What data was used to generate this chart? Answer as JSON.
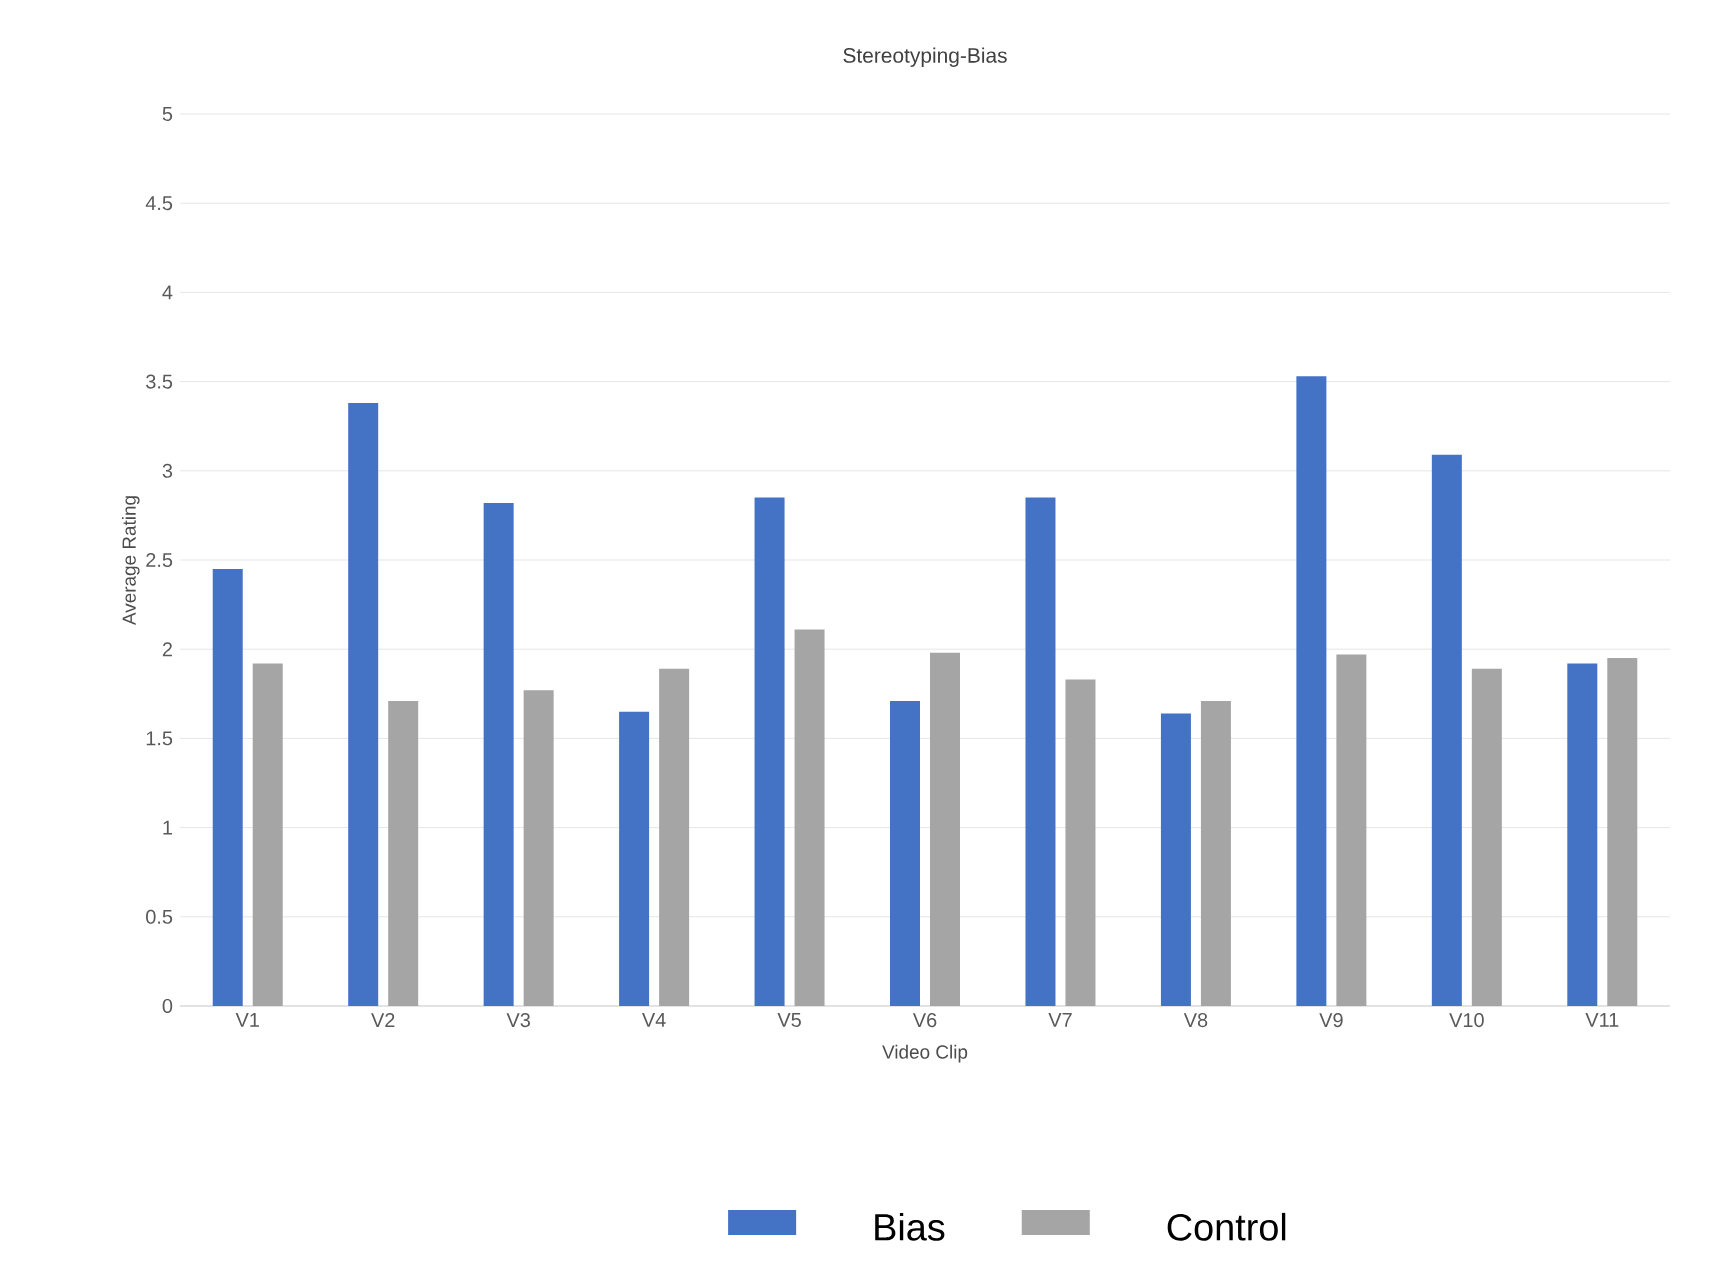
{
  "chart_data": {
    "type": "bar",
    "title": "Stereotyping-Bias",
    "xlabel": "Video Clip",
    "ylabel": "Average Rating",
    "categories": [
      "V1",
      "V2",
      "V3",
      "V4",
      "V5",
      "V6",
      "V7",
      "V8",
      "V9",
      "V10",
      "V11"
    ],
    "series": [
      {
        "name": "Bias",
        "color": "#4472c4",
        "values": [
          2.45,
          3.38,
          2.82,
          1.65,
          2.85,
          1.71,
          2.85,
          1.64,
          3.53,
          3.09,
          1.92
        ]
      },
      {
        "name": "Control",
        "color": "#a5a5a5",
        "values": [
          1.92,
          1.71,
          1.77,
          1.89,
          2.11,
          1.98,
          1.83,
          1.71,
          1.97,
          1.89,
          1.95
        ]
      }
    ],
    "ylim": [
      0,
      5
    ],
    "yticks": [
      0,
      0.5,
      1,
      1.5,
      2,
      2.5,
      3,
      3.5,
      4,
      4.5,
      5
    ],
    "grid": "y",
    "legend": "bottom"
  }
}
